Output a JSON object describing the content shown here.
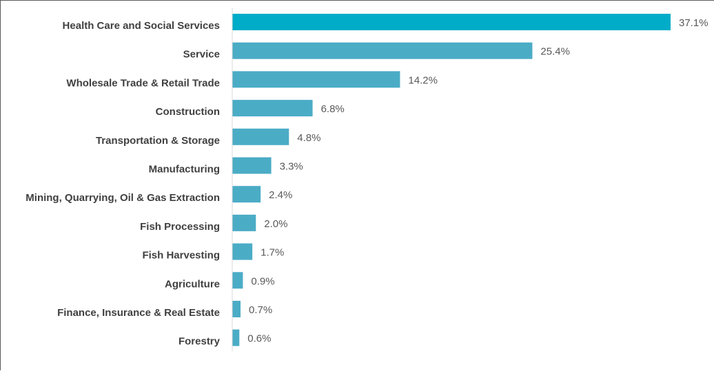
{
  "chart_data": {
    "type": "bar",
    "orientation": "horizontal",
    "title": "",
    "xlabel": "",
    "ylabel": "",
    "value_suffix": "%",
    "categories": [
      "Health Care and Social Services",
      "Service",
      "Wholesale Trade & Retail Trade",
      "Construction",
      "Transportation & Storage",
      "Manufacturing",
      "Mining, Quarrying, Oil & Gas Extraction",
      "Fish Processing",
      "Fish Harvesting",
      "Agriculture",
      "Finance, Insurance & Real Estate",
      "Forestry"
    ],
    "values": [
      37.1,
      25.4,
      14.2,
      6.8,
      4.8,
      3.3,
      2.4,
      2.0,
      1.7,
      0.9,
      0.7,
      0.6
    ],
    "data_labels": [
      "37.1%",
      "25.4%",
      "14.2%",
      "6.8%",
      "4.8%",
      "3.3%",
      "2.4%",
      "2.0%",
      "1.7%",
      "0.9%",
      "0.7%",
      "0.6%"
    ],
    "xlim": [
      0,
      37.1
    ],
    "grid": false,
    "legend": "none",
    "colors": {
      "highlight_bar": "#00acc8",
      "bar": "#4bacc6",
      "axis_line": "#d9d9d9",
      "category_text": "#404040",
      "value_text": "#595959"
    }
  }
}
